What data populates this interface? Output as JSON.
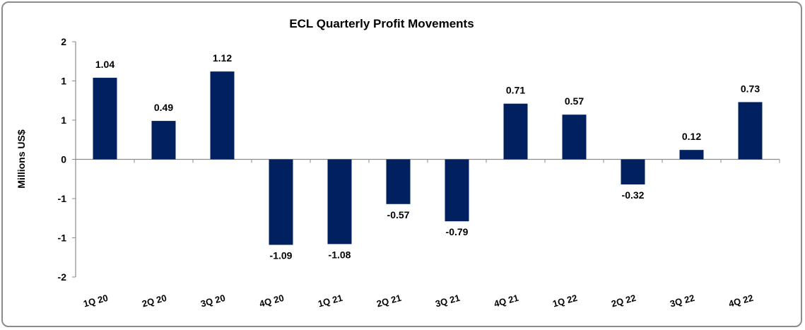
{
  "chart_data": {
    "type": "bar",
    "title": "ECL Quarterly Profit Movements",
    "xlabel": "",
    "ylabel": "Millions US$",
    "categories": [
      "1Q 20",
      "2Q 20",
      "3Q 20",
      "4Q 20",
      "1Q 21",
      "2Q 21",
      "3Q 21",
      "4Q 21",
      "1Q 22",
      "2Q 22",
      "3Q 22",
      "4Q 22"
    ],
    "values": [
      1.04,
      0.49,
      1.12,
      -1.09,
      -1.08,
      -0.57,
      -0.79,
      0.71,
      0.57,
      -0.32,
      0.12,
      0.73
    ],
    "data_labels": [
      "1.04",
      "0.49",
      "1.12",
      "-1.09",
      "-1.08",
      "-0.57",
      "-0.79",
      "0.71",
      "0.57",
      "-0.32",
      "0.12",
      "0.73"
    ],
    "ylim": [
      -1.5,
      1.5
    ],
    "yticks": [
      1.5,
      1,
      0.5,
      0,
      -0.5,
      -1,
      -1.5
    ],
    "ytick_labels": [
      "2",
      "1",
      "1",
      "0",
      "-1",
      "-1",
      "-2"
    ],
    "grid": false,
    "legend": "none",
    "bar_color": "#002060"
  }
}
